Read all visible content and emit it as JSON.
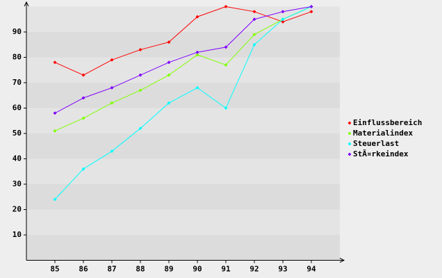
{
  "chart_data": {
    "type": "line",
    "x": [
      85,
      86,
      87,
      88,
      89,
      90,
      91,
      92,
      93,
      94
    ],
    "xlim": [
      84,
      95
    ],
    "xticks": [
      85,
      86,
      87,
      88,
      89,
      90,
      91,
      92,
      93,
      94
    ],
    "ylim": [
      0,
      100
    ],
    "yticks": [
      10,
      20,
      30,
      40,
      50,
      60,
      70,
      80,
      90
    ],
    "grid": true,
    "legend": "right",
    "series": [
      {
        "name": "Einflussbereich",
        "color": "#ff0000",
        "values": [
          78,
          73,
          79,
          83,
          86,
          96,
          100,
          98,
          94,
          98
        ]
      },
      {
        "name": "Materialindex",
        "color": "#80ff00",
        "values": [
          51,
          56,
          62,
          67,
          73,
          81,
          77,
          89,
          95,
          100
        ]
      },
      {
        "name": "Steuerlast",
        "color": "#00ffff",
        "values": [
          24,
          36,
          43,
          52,
          62,
          68,
          60,
          85,
          95,
          100
        ]
      },
      {
        "name": "StÃ¤rkeindex",
        "color": "#8000ff",
        "values": [
          58,
          64,
          68,
          73,
          78,
          82,
          84,
          95,
          98,
          100
        ]
      }
    ]
  }
}
